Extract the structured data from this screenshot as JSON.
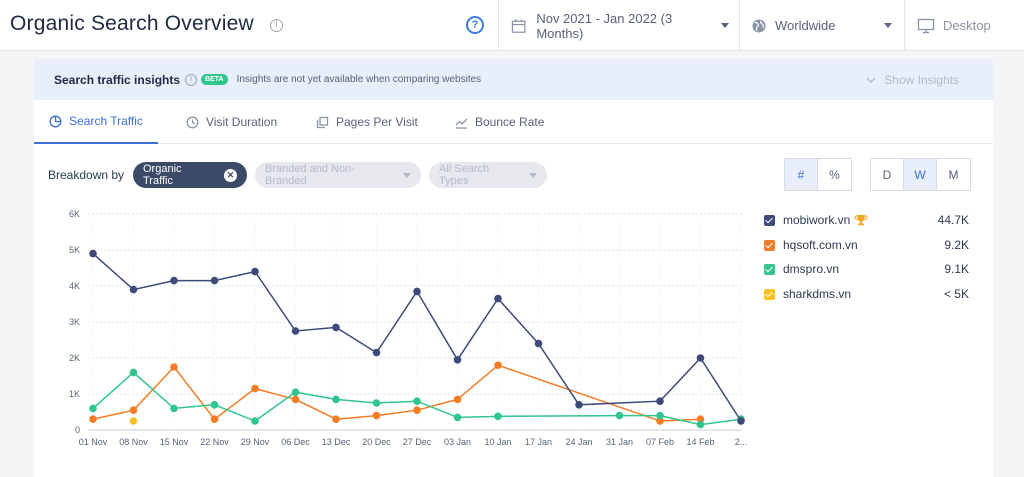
{
  "header": {
    "title": "Organic Search Overview",
    "date_range": "Nov 2021 - Jan 2022 (3 Months)",
    "region": "Worldwide",
    "device": "Desktop"
  },
  "insights": {
    "label": "Search traffic insights",
    "badge": "BETA",
    "note": "Insights are not yet available when comparing websites",
    "show_button": "Show Insights"
  },
  "tabs": [
    {
      "label": "Search Traffic",
      "active": true
    },
    {
      "label": "Visit Duration",
      "active": false
    },
    {
      "label": "Pages Per Visit",
      "active": false
    },
    {
      "label": "Bounce Rate",
      "active": false
    }
  ],
  "breakdown": {
    "label": "Breakdown by",
    "selected": "Organic Traffic",
    "option2": "Branded and Non-Branded",
    "option3": "All Search Types"
  },
  "toggles": {
    "number": "#",
    "percent": "%",
    "day": "D",
    "week": "W",
    "month": "M"
  },
  "colors": {
    "mobiwork": "#3d4a7a",
    "hqsoft": "#f47c25",
    "dmspro": "#2fc58d",
    "sharkdms": "#f7c21b",
    "accent": "#3b6fd4"
  },
  "legend": [
    {
      "name": "mobiwork.vn",
      "value": "44.7K",
      "trophy": true
    },
    {
      "name": "hqsoft.com.vn",
      "value": "9.2K",
      "trophy": false
    },
    {
      "name": "dmspro.vn",
      "value": "9.1K",
      "trophy": false
    },
    {
      "name": "sharkdms.vn",
      "value": "< 5K",
      "trophy": false
    }
  ],
  "chart_data": {
    "type": "line",
    "x": [
      "01 Nov",
      "08 Nov",
      "15 Nov",
      "22 Nov",
      "29 Nov",
      "06 Dec",
      "13 Dec",
      "20 Dec",
      "27 Dec",
      "03 Jan",
      "10 Jan",
      "17 Jan",
      "24 Jan",
      "31 Jan",
      "07 Feb",
      "14 Feb",
      "2..."
    ],
    "ylim": [
      0,
      6000
    ],
    "yticks": [
      "0",
      "1K",
      "2K",
      "3K",
      "4K",
      "5K",
      "6K"
    ],
    "grid": true,
    "series": [
      {
        "name": "mobiwork.vn",
        "points": [
          [
            0,
            4900
          ],
          [
            1,
            3900
          ],
          [
            2,
            4150
          ],
          [
            3,
            4150
          ],
          [
            4,
            4400
          ],
          [
            5,
            2750
          ],
          [
            6,
            2850
          ],
          [
            7,
            2150
          ],
          [
            8,
            3850
          ],
          [
            9,
            1950
          ],
          [
            10,
            3650
          ],
          [
            11,
            2400
          ],
          [
            12,
            700
          ],
          [
            14,
            800
          ],
          [
            15,
            2000
          ],
          [
            16,
            250
          ]
        ]
      },
      {
        "name": "hqsoft.com.vn",
        "points": [
          [
            0,
            300
          ],
          [
            1,
            550
          ],
          [
            2,
            1750
          ],
          [
            3,
            300
          ],
          [
            4,
            1150
          ],
          [
            5,
            850
          ],
          [
            6,
            300
          ],
          [
            7,
            400
          ],
          [
            8,
            550
          ],
          [
            9,
            850
          ],
          [
            10,
            1800
          ],
          [
            14,
            250
          ],
          [
            15,
            300
          ]
        ]
      },
      {
        "name": "dmspro.vn",
        "points": [
          [
            0,
            600
          ],
          [
            1,
            1600
          ],
          [
            2,
            600
          ],
          [
            3,
            700
          ],
          [
            4,
            250
          ],
          [
            5,
            1050
          ],
          [
            6,
            850
          ],
          [
            7,
            750
          ],
          [
            8,
            800
          ],
          [
            9,
            350
          ],
          [
            10,
            380
          ],
          [
            13,
            400
          ],
          [
            14,
            400
          ],
          [
            15,
            150
          ],
          [
            16,
            300
          ]
        ]
      },
      {
        "name": "sharkdms.vn",
        "points": [
          [
            1,
            250
          ]
        ]
      }
    ]
  }
}
